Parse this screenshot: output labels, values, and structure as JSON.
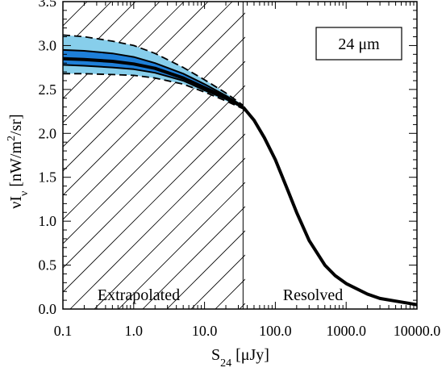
{
  "chart_data": {
    "type": "line",
    "x_scale": "log",
    "xlim": [
      0.1,
      10000
    ],
    "ylim": [
      0,
      3.5
    ],
    "xlabel": {
      "main": "S",
      "sub": "24",
      "unit": " [μJy]"
    },
    "ylabel": {
      "main": "νI",
      "sub": "ν",
      "unit_pre": " [nW/m",
      "sup": "2",
      "unit_post": "/sr]"
    },
    "x_ticks": [
      {
        "value": 0.1,
        "label": "0.1"
      },
      {
        "value": 1,
        "label": "1.0"
      },
      {
        "value": 10,
        "label": "10.0"
      },
      {
        "value": 100,
        "label": "100.0"
      },
      {
        "value": 1000,
        "label": "1000.0"
      },
      {
        "value": 10000,
        "label": "10000.0"
      }
    ],
    "y_ticks": [
      {
        "value": 0,
        "label": "0.0"
      },
      {
        "value": 0.5,
        "label": "0.5"
      },
      {
        "value": 1.0,
        "label": "1.0"
      },
      {
        "value": 1.5,
        "label": "1.5"
      },
      {
        "value": 2.0,
        "label": "2.0"
      },
      {
        "value": 2.5,
        "label": "2.5"
      },
      {
        "value": 3.0,
        "label": "3.0"
      },
      {
        "value": 3.5,
        "label": "3.5"
      }
    ],
    "boundary_x": 35,
    "annotations": {
      "box_label": "24 μm",
      "left_region": "Extrapolated",
      "right_region": "Resolved"
    },
    "series": [
      {
        "role": "central",
        "x": [
          0.1,
          0.2,
          0.5,
          1,
          2,
          5,
          10,
          20,
          35
        ],
        "y": [
          2.85,
          2.84,
          2.82,
          2.79,
          2.74,
          2.63,
          2.52,
          2.41,
          2.3
        ]
      },
      {
        "role": "inner_upper",
        "x": [
          0.1,
          0.2,
          0.5,
          1,
          2,
          5,
          10,
          20,
          35
        ],
        "y": [
          2.95,
          2.94,
          2.91,
          2.87,
          2.8,
          2.68,
          2.56,
          2.43,
          2.31
        ]
      },
      {
        "role": "inner_lower",
        "x": [
          0.1,
          0.2,
          0.5,
          1,
          2,
          5,
          10,
          20,
          35
        ],
        "y": [
          2.78,
          2.77,
          2.75,
          2.73,
          2.69,
          2.6,
          2.49,
          2.39,
          2.29
        ]
      },
      {
        "role": "outer_upper",
        "x": [
          0.1,
          0.2,
          0.5,
          1,
          2,
          5,
          10,
          20,
          35
        ],
        "y": [
          3.12,
          3.1,
          3.05,
          3.0,
          2.91,
          2.75,
          2.61,
          2.46,
          2.32
        ]
      },
      {
        "role": "outer_lower",
        "x": [
          0.1,
          0.2,
          0.5,
          1,
          2,
          5,
          10,
          20,
          35
        ],
        "y": [
          2.68,
          2.68,
          2.67,
          2.66,
          2.63,
          2.56,
          2.47,
          2.37,
          2.28
        ]
      },
      {
        "role": "resolved",
        "x": [
          35,
          50,
          70,
          100,
          150,
          200,
          300,
          500,
          700,
          1000,
          2000,
          3000,
          5000,
          10000
        ],
        "y": [
          2.3,
          2.15,
          1.95,
          1.7,
          1.35,
          1.1,
          0.78,
          0.5,
          0.38,
          0.29,
          0.17,
          0.12,
          0.09,
          0.05
        ]
      }
    ],
    "colors": {
      "outer_band": "#87ceeb",
      "inner_band": "#1e7fd8",
      "line": "#000000"
    }
  }
}
